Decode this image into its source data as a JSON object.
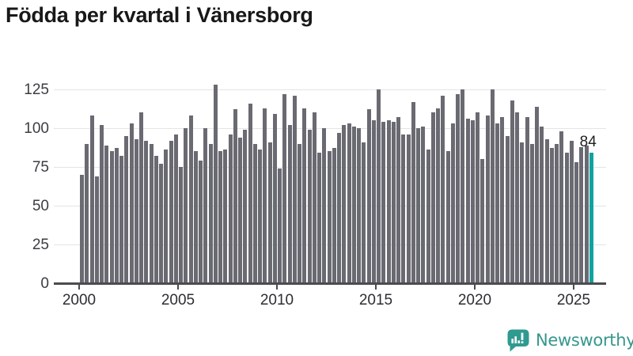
{
  "header": {
    "title": "Födda per kvartal i Vänersborg"
  },
  "footer": {
    "brand_name": "Newsworthy",
    "brand_icon": "bar-chart-speech-bubble-icon"
  },
  "colors": {
    "bar_gray": "#6a6a72",
    "bar_highlight_teal": "#0fa3a0",
    "gridline": "#e4e4e4",
    "axis": "#4b4b50",
    "title_text": "#181818",
    "tick_text": "#3c3c42",
    "brand_teal": "#35978d",
    "background": "#ffffff"
  },
  "chart_data": {
    "type": "bar",
    "title": "Födda per kvartal i Vänersborg",
    "xlabel": "",
    "ylabel": "",
    "x_unit": "quarter",
    "x_range_start": "2000-Q1",
    "x_range_end": "2025-Q4",
    "x_tick_labels": [
      "2000",
      "2005",
      "2010",
      "2015",
      "2020",
      "2025"
    ],
    "y_tick_labels": [
      "0",
      "25",
      "50",
      "75",
      "100",
      "125"
    ],
    "ylim": [
      0,
      130
    ],
    "grid": "horizontal",
    "legend": "none",
    "highlight_index": 103,
    "highlight_value_label": "84",
    "values": [
      70,
      90,
      108,
      69,
      102,
      89,
      85,
      87,
      82,
      95,
      103,
      93,
      110,
      92,
      90,
      82,
      77,
      86,
      92,
      96,
      75,
      100,
      108,
      85,
      79,
      100,
      90,
      128,
      85,
      86,
      96,
      112,
      94,
      99,
      116,
      90,
      86,
      113,
      91,
      109,
      74,
      122,
      102,
      121,
      90,
      113,
      99,
      110,
      84,
      100,
      85,
      87,
      97,
      102,
      103,
      101,
      100,
      91,
      112,
      105,
      125,
      104,
      105,
      104,
      107,
      96,
      96,
      117,
      100,
      101,
      86,
      110,
      113,
      121,
      85,
      103,
      122,
      125,
      106,
      105,
      110,
      80,
      108,
      125,
      103,
      107,
      95,
      118,
      110,
      91,
      107,
      90,
      114,
      101,
      93,
      87,
      90,
      98,
      84,
      92,
      78,
      88,
      89,
      84
    ]
  }
}
